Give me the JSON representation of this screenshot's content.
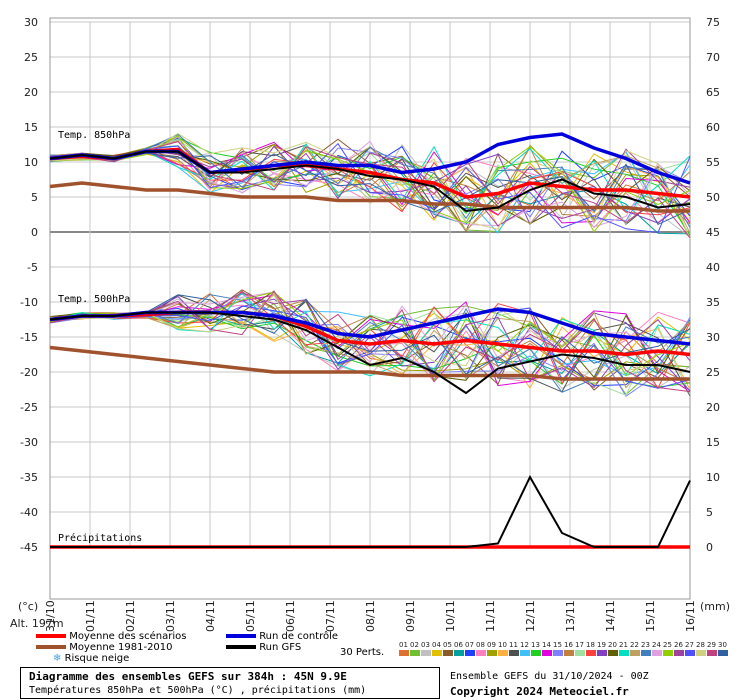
{
  "chart_data": {
    "type": "line",
    "left_axis": {
      "ticks": [
        30,
        25,
        20,
        15,
        10,
        5,
        0,
        -5,
        -10,
        -15,
        -20,
        -25,
        -30,
        -35,
        -40,
        -45
      ],
      "min": -45,
      "max": 30,
      "unit": "(°c)"
    },
    "right_axis": {
      "ticks": [
        75,
        70,
        65,
        60,
        55,
        50,
        45,
        40,
        35,
        30,
        25,
        20,
        15,
        10,
        5,
        0
      ],
      "unit": "(mm)"
    },
    "x_dates": [
      "31/10",
      "01/11",
      "02/11",
      "03/11",
      "04/11",
      "05/11",
      "06/11",
      "07/11",
      "08/11",
      "09/11",
      "10/11",
      "11/11",
      "12/11",
      "13/11",
      "14/11",
      "15/11",
      "16/11"
    ],
    "alt_label": "Alt. 197m",
    "panel_labels": {
      "t850": "Temp. 850hPa",
      "t500": "Temp. 500hPa",
      "precip": "Précipitations"
    },
    "series": [
      {
        "name": "Moyenne des scénarios",
        "color": "#ff0000",
        "t850": [
          10.5,
          10.8,
          10.5,
          11.5,
          11.8,
          8.5,
          8.8,
          9.5,
          9.5,
          9.0,
          8.5,
          7.5,
          7.0,
          5.0,
          5.5,
          7.0,
          6.5,
          6.0,
          6.0,
          5.5,
          5.0
        ],
        "t500": [
          -12.5,
          -12.0,
          -12.0,
          -11.8,
          -11.5,
          -11.5,
          -11.5,
          -12.0,
          -13.5,
          -15.5,
          -16.0,
          -15.5,
          -16.0,
          -15.5,
          -16.0,
          -16.5,
          -17.0,
          -17.0,
          -17.5,
          -17.0,
          -17.5
        ],
        "precip": [
          0,
          0,
          0,
          0,
          0,
          0,
          0,
          0,
          0,
          0,
          0,
          0,
          0,
          0,
          0,
          0,
          0,
          0,
          0,
          0,
          0
        ]
      },
      {
        "name": "Moyenne 1981-2010",
        "color": "#a0522d",
        "t850": [
          6.5,
          7.0,
          6.5,
          6.0,
          6.0,
          5.5,
          5.0,
          5.0,
          5.0,
          4.5,
          4.5,
          4.5,
          4.0,
          4.0,
          3.5,
          3.5,
          3.5,
          3.5,
          3.5,
          3.0,
          3.0
        ],
        "t500": [
          -16.5,
          -17.0,
          -17.5,
          -18.0,
          -18.5,
          -19.0,
          -19.5,
          -20.0,
          -20.0,
          -20.0,
          -20.0,
          -20.5,
          -20.5,
          -20.5,
          -20.5,
          -20.5,
          -21.0,
          -21.0,
          -21.0,
          -21.0,
          -21.0
        ]
      },
      {
        "name": "Run de contrôle",
        "color": "#0000dd",
        "t850": [
          10.5,
          11.0,
          10.5,
          11.5,
          11.5,
          8.5,
          9.0,
          9.5,
          10.0,
          9.5,
          9.5,
          8.5,
          9.0,
          10.0,
          12.5,
          13.5,
          14.0,
          12.0,
          10.5,
          8.5,
          7.0
        ],
        "t500": [
          -12.5,
          -12.0,
          -12.0,
          -11.5,
          -11.5,
          -11.5,
          -11.5,
          -12.0,
          -13.0,
          -14.5,
          -15.0,
          -14.0,
          -13.0,
          -12.0,
          -11.0,
          -11.5,
          -13.0,
          -14.5,
          -15.0,
          -15.5,
          -16.0
        ]
      },
      {
        "name": "Run GFS",
        "color": "#000000",
        "t850": [
          10.5,
          11.0,
          10.5,
          11.5,
          11.5,
          8.5,
          8.5,
          9.0,
          9.5,
          9.0,
          8.0,
          7.5,
          6.5,
          3.0,
          3.5,
          6.0,
          7.5,
          5.5,
          5.0,
          3.5,
          4.0
        ],
        "t500": [
          -12.5,
          -12.0,
          -12.0,
          -11.5,
          -11.5,
          -11.5,
          -12.0,
          -12.5,
          -14.0,
          -16.5,
          -19.0,
          -18.0,
          -20.0,
          -23.0,
          -19.5,
          -18.5,
          -17.5,
          -18.0,
          -19.0,
          -19.0,
          -20.0
        ],
        "precip": [
          0,
          0,
          0,
          0,
          0,
          0,
          0,
          0,
          0,
          0,
          0,
          0,
          0,
          0,
          0.5,
          10,
          2,
          0,
          0,
          0,
          9.5
        ]
      }
    ],
    "legend": {
      "mean": "Moyenne des scénarios",
      "clim": "Moyenne 1981-2010",
      "snow": "Risque neige",
      "control": "Run de contrôle",
      "gfs": "Run GFS",
      "perts_label": "30 Perts."
    },
    "pert_numbers": [
      "01",
      "02",
      "03",
      "04",
      "05",
      "06",
      "07",
      "08",
      "09",
      "10",
      "11",
      "12",
      "13",
      "14",
      "15",
      "16",
      "17",
      "18",
      "19",
      "20",
      "21",
      "22",
      "23",
      "24",
      "25",
      "26",
      "27",
      "28",
      "29",
      "30"
    ],
    "pert_colors": [
      "#e07030",
      "#70c030",
      "#c0c0c0",
      "#e0c000",
      "#8b5a2b",
      "#00a0a0",
      "#2040ff",
      "#ff80c0",
      "#a0a000",
      "#ffb040",
      "#505050",
      "#40c0ff",
      "#20d020",
      "#e000e0",
      "#8080ff",
      "#c08040",
      "#a0e0a0",
      "#ff4040",
      "#8040c0",
      "#606000",
      "#00e0c0",
      "#c0a060",
      "#4080c0",
      "#e0a0e0",
      "#90d000",
      "#a040a0",
      "#5050ff",
      "#d0d080",
      "#c04080",
      "#3060a0"
    ]
  },
  "footer": {
    "title": "Diagramme des ensembles GEFS sur 384h : 45N 9.9E",
    "subtitle": "Températures 850hPa et 500hPa (°C) , précipitations (mm)",
    "run": "Ensemble GEFS du 31/10/2024 - 00Z",
    "copyright": "Copyright 2024 Meteociel.fr"
  }
}
